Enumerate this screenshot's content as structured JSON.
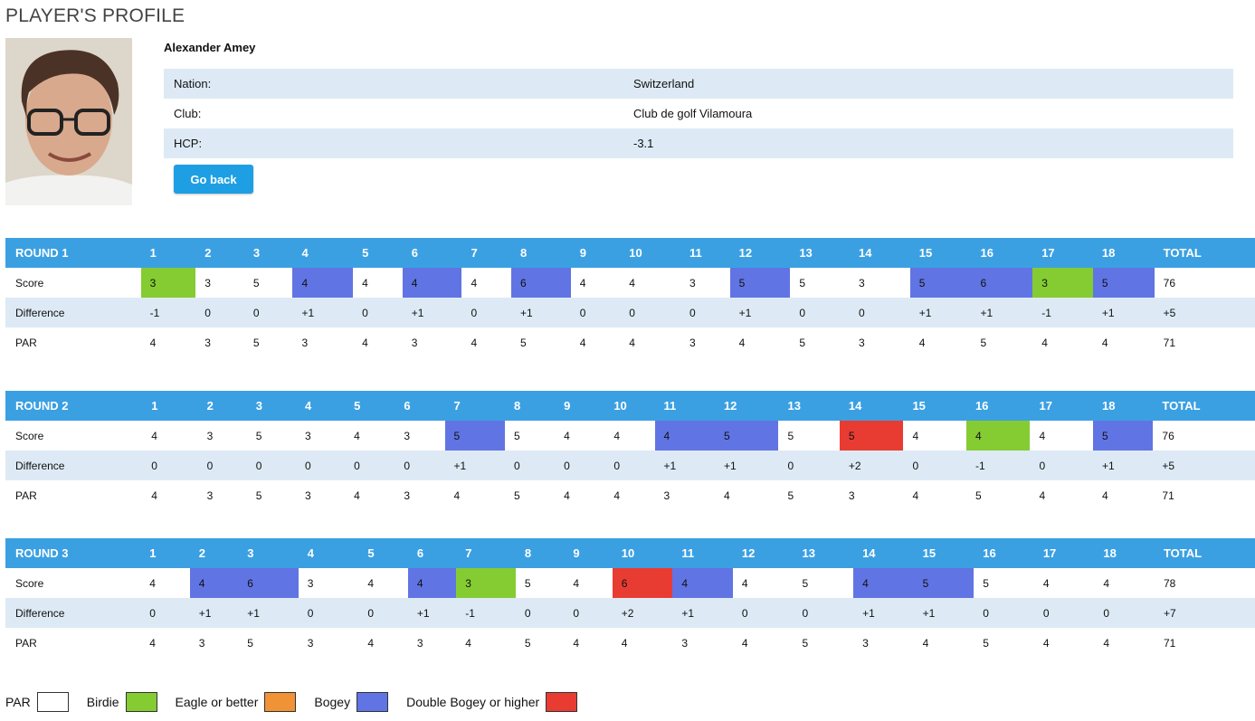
{
  "page": {
    "title": "PLAYER'S PROFILE"
  },
  "player": {
    "name": "Alexander Amey",
    "photo_icon": "player-photo",
    "info": [
      {
        "label": "Nation:",
        "value": "Switzerland"
      },
      {
        "label": "Club:",
        "value": "Club de golf Vilamoura"
      },
      {
        "label": "HCP:",
        "value": "-3.1"
      }
    ]
  },
  "actions": {
    "go_back_label": "Go back"
  },
  "colors": {
    "birdie": "#84cc32",
    "bogey": "#6174e3",
    "double": "#e83c33",
    "eagle": "#f09236",
    "header": "#3ba0e2"
  },
  "row_labels": {
    "score": "Score",
    "difference": "Difference",
    "par": "PAR",
    "total": "TOTAL"
  },
  "rounds": [
    {
      "title": "ROUND 1",
      "holes": [
        "1",
        "2",
        "3",
        "4",
        "5",
        "6",
        "7",
        "8",
        "9",
        "10",
        "11",
        "12",
        "13",
        "14",
        "15",
        "16",
        "17",
        "18"
      ],
      "score": [
        "3",
        "3",
        "5",
        "4",
        "4",
        "4",
        "4",
        "6",
        "4",
        "4",
        "3",
        "5",
        "5",
        "3",
        "5",
        "6",
        "3",
        "5"
      ],
      "score_total": "76",
      "difference": [
        "-1",
        "0",
        "0",
        "+1",
        "0",
        "+1",
        "0",
        "+1",
        "0",
        "0",
        "0",
        "+1",
        "0",
        "0",
        "+1",
        "+1",
        "-1",
        "+1"
      ],
      "difference_total": "+5",
      "par": [
        "4",
        "3",
        "5",
        "3",
        "4",
        "3",
        "4",
        "5",
        "4",
        "4",
        "3",
        "4",
        "5",
        "3",
        "4",
        "5",
        "4",
        "4"
      ],
      "par_total": "71"
    },
    {
      "title": "ROUND 2",
      "holes": [
        "1",
        "2",
        "3",
        "4",
        "5",
        "6",
        "7",
        "8",
        "9",
        "10",
        "11",
        "12",
        "13",
        "14",
        "15",
        "16",
        "17",
        "18"
      ],
      "score": [
        "4",
        "3",
        "5",
        "3",
        "4",
        "3",
        "5",
        "5",
        "4",
        "4",
        "4",
        "5",
        "5",
        "5",
        "4",
        "4",
        "4",
        "5"
      ],
      "score_total": "76",
      "difference": [
        "0",
        "0",
        "0",
        "0",
        "0",
        "0",
        "+1",
        "0",
        "0",
        "0",
        "+1",
        "+1",
        "0",
        "+2",
        "0",
        "-1",
        "0",
        "+1"
      ],
      "difference_total": "+5",
      "par": [
        "4",
        "3",
        "5",
        "3",
        "4",
        "3",
        "4",
        "5",
        "4",
        "4",
        "3",
        "4",
        "5",
        "3",
        "4",
        "5",
        "4",
        "4"
      ],
      "par_total": "71"
    },
    {
      "title": "ROUND 3",
      "holes": [
        "1",
        "2",
        "3",
        "4",
        "5",
        "6",
        "7",
        "8",
        "9",
        "10",
        "11",
        "12",
        "13",
        "14",
        "15",
        "16",
        "17",
        "18"
      ],
      "score": [
        "4",
        "4",
        "6",
        "3",
        "4",
        "4",
        "3",
        "5",
        "4",
        "6",
        "4",
        "4",
        "5",
        "4",
        "5",
        "5",
        "4",
        "4"
      ],
      "score_total": "78",
      "difference": [
        "0",
        "+1",
        "+1",
        "0",
        "0",
        "+1",
        "-1",
        "0",
        "0",
        "+2",
        "+1",
        "0",
        "0",
        "+1",
        "+1",
        "0",
        "0",
        "0"
      ],
      "difference_total": "+7",
      "par": [
        "4",
        "3",
        "5",
        "3",
        "4",
        "3",
        "4",
        "5",
        "4",
        "4",
        "3",
        "4",
        "5",
        "3",
        "4",
        "5",
        "4",
        "4"
      ],
      "par_total": "71"
    }
  ],
  "legend": [
    {
      "label": "PAR",
      "color": "#ffffff"
    },
    {
      "label": "Birdie",
      "color": "#84cc32"
    },
    {
      "label": "Eagle or better",
      "color": "#f09236"
    },
    {
      "label": "Bogey",
      "color": "#6174e3"
    },
    {
      "label": "Double Bogey or higher",
      "color": "#e83c33"
    }
  ]
}
